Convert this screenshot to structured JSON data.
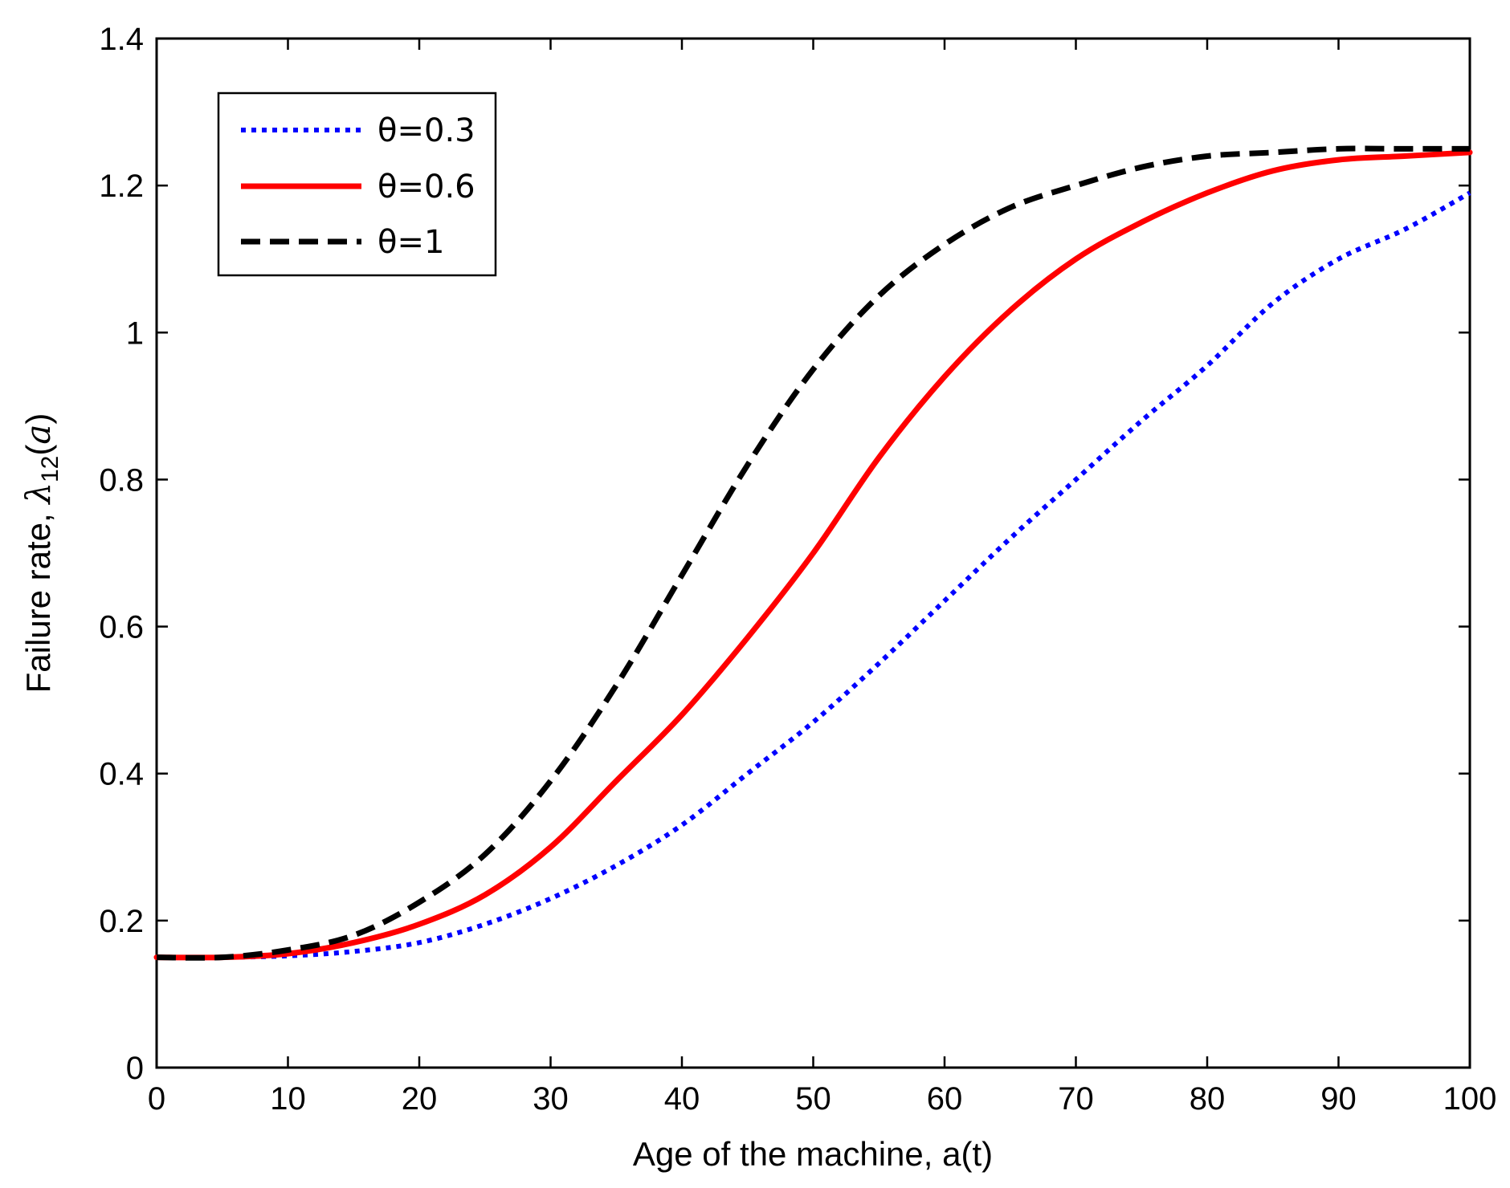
{
  "chart_data": {
    "type": "line",
    "title": "",
    "xlabel": "Age of the machine, a(t)",
    "ylabel": {
      "prefix": "Failure rate, ",
      "symbol": "λ",
      "subscript": "12",
      "open_paren": "(",
      "arg": "a",
      "close_paren": ")"
    },
    "xlim": [
      0,
      100
    ],
    "ylim": [
      0,
      1.4
    ],
    "xticks": [
      0,
      10,
      20,
      30,
      40,
      50,
      60,
      70,
      80,
      90,
      100
    ],
    "xtick_labels": [
      "0",
      "10",
      "20",
      "30",
      "40",
      "50",
      "60",
      "70",
      "80",
      "90",
      "100"
    ],
    "yticks": [
      0,
      0.2,
      0.4,
      0.6,
      0.8,
      1.0,
      1.2,
      1.4
    ],
    "ytick_labels": [
      "0",
      "0.2",
      "0.4",
      "0.6",
      "0.8",
      "1",
      "1.2",
      "1.4"
    ],
    "grid": false,
    "legend_position": "top-left",
    "x": [
      0,
      5,
      10,
      15,
      20,
      25,
      30,
      35,
      40,
      45,
      50,
      55,
      60,
      65,
      70,
      75,
      80,
      85,
      90,
      95,
      100
    ],
    "series": [
      {
        "name": "θ=0.3",
        "color": "#0000ff",
        "style": "dotted",
        "values": [
          0.15,
          0.15,
          0.152,
          0.158,
          0.17,
          0.195,
          0.23,
          0.275,
          0.33,
          0.4,
          0.47,
          0.55,
          0.635,
          0.72,
          0.8,
          0.88,
          0.955,
          1.04,
          1.1,
          1.14,
          1.19
        ]
      },
      {
        "name": "θ=0.6",
        "color": "#ff0000",
        "style": "solid",
        "values": [
          0.15,
          0.15,
          0.155,
          0.17,
          0.195,
          0.235,
          0.3,
          0.39,
          0.48,
          0.585,
          0.7,
          0.83,
          0.94,
          1.03,
          1.1,
          1.15,
          1.19,
          1.22,
          1.235,
          1.24,
          1.245
        ]
      },
      {
        "name": "θ=1",
        "color": "#000000",
        "style": "dashed",
        "values": [
          0.15,
          0.15,
          0.16,
          0.18,
          0.225,
          0.29,
          0.39,
          0.52,
          0.67,
          0.82,
          0.95,
          1.05,
          1.12,
          1.17,
          1.2,
          1.225,
          1.24,
          1.245,
          1.25,
          1.25,
          1.25
        ]
      }
    ]
  }
}
